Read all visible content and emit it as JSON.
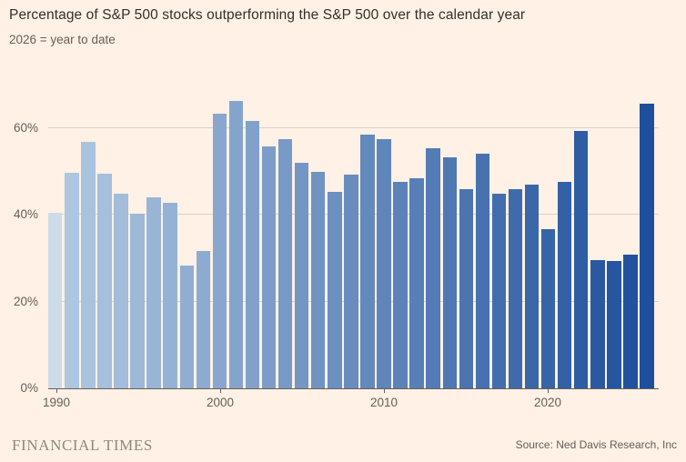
{
  "header": {
    "title": "Percentage of S&P 500 stocks outperforming the S&P 500 over the calendar year",
    "subtitle": "2026 = year to date"
  },
  "footer": {
    "brand": "FINANCIAL TIMES",
    "source": "Source: Ned Davis Research, Inc"
  },
  "chart_data": {
    "type": "bar",
    "title": "Percentage of S&P 500 stocks outperforming the S&P 500 over the calendar year",
    "subtitle": "2026 = year to date",
    "categories": [
      1990,
      1991,
      1992,
      1993,
      1994,
      1995,
      1996,
      1997,
      1998,
      1999,
      2000,
      2001,
      2002,
      2003,
      2004,
      2005,
      2006,
      2007,
      2008,
      2009,
      2010,
      2011,
      2012,
      2013,
      2014,
      2015,
      2016,
      2017,
      2018,
      2019,
      2020,
      2021,
      2022,
      2023,
      2024,
      2025,
      2026
    ],
    "values": [
      40.4,
      49.6,
      56.8,
      49.5,
      44.8,
      40.3,
      44.1,
      42.7,
      28.2,
      31.6,
      63.4,
      66.3,
      61.7,
      55.8,
      57.4,
      51.9,
      49.8,
      45.2,
      49.3,
      58.4,
      57.5,
      47.6,
      48.5,
      55.3,
      53.2,
      45.9,
      54.0,
      44.9,
      45.9,
      46.9,
      36.6,
      47.6,
      59.3,
      29.6,
      29.4,
      30.8,
      65.5
    ],
    "xlabel": "",
    "ylabel": "",
    "ylim": [
      0,
      70
    ],
    "yticks": [
      {
        "value": 0,
        "label": "0%"
      },
      {
        "value": 20,
        "label": "20%"
      },
      {
        "value": 40,
        "label": "40%"
      },
      {
        "value": 60,
        "label": "60%"
      }
    ],
    "xticks": [
      {
        "year": 1990,
        "label": "1990"
      },
      {
        "year": 2000,
        "label": "2000"
      },
      {
        "year": 2010,
        "label": "2010"
      },
      {
        "year": 2020,
        "label": "2020"
      }
    ],
    "grid": true,
    "legend": "none",
    "colors": {
      "background": "#fff1e5",
      "first_bar": "#cddcea",
      "gradient_start": "#aec6df",
      "gradient_end": "#1e4f9c",
      "gridline": "#d8d2c7",
      "axis": "#66605b"
    }
  }
}
